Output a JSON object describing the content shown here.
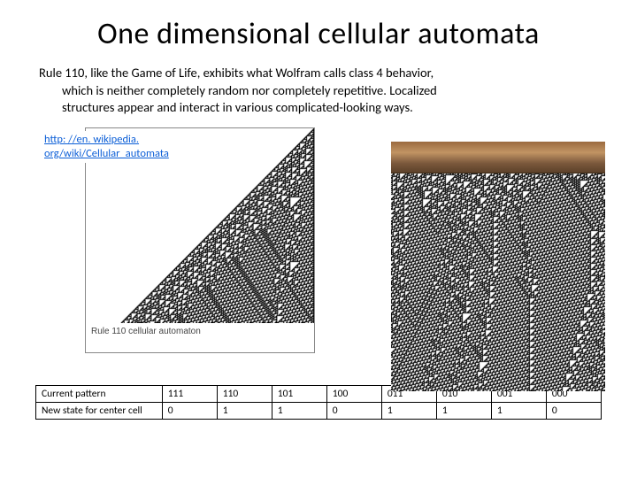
{
  "title": "One dimensional cellular automata",
  "body": {
    "line1": "Rule 110, like the Game of Life, exhibits what Wolfram calls class 4 behavior,",
    "line2": "which is neither completely random nor completely repetitive. Localized",
    "line3": "structures appear and interact in various complicated-looking ways."
  },
  "link": {
    "text": "http: //en. wikipedia. org/wiki/Cellular_automata"
  },
  "left_figure": {
    "caption": "Rule 110 cellular automaton",
    "width_cells": 260,
    "height_cells": 220,
    "rule": 110,
    "fg": "#000000",
    "bg": "#ffffff",
    "init": "single"
  },
  "right_figure": {
    "width_cells": 242,
    "height_cells": 246,
    "rule": 110,
    "fg": "#000000",
    "bg": "#ffffff",
    "init": "random",
    "seed": 12345
  },
  "rule_table": {
    "row1_label": "Current pattern",
    "row2_label": "New state for center cell",
    "patterns": [
      "111",
      "110",
      "101",
      "100",
      "011",
      "010",
      "001",
      "000"
    ],
    "outputs": [
      "0",
      "1",
      "1",
      "0",
      "1",
      "1",
      "1",
      "0"
    ]
  },
  "colors": {
    "text": "#000000",
    "link": "#0b5ed7",
    "border": "#000000"
  }
}
